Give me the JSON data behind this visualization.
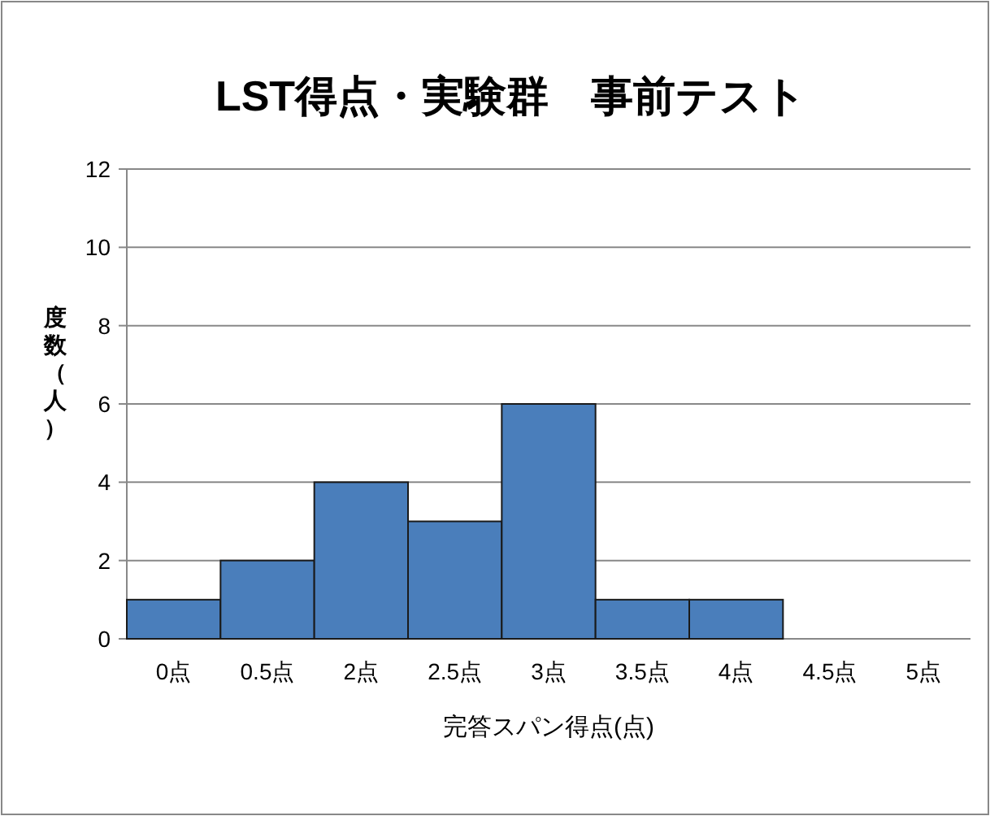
{
  "chart_data": {
    "type": "bar",
    "title": "LST得点・実験群　事前テスト",
    "xlabel": "完答スパン得点(点)",
    "ylabel": "度数（人）",
    "categories": [
      "0点",
      "0.5点",
      "2点",
      "2.5点",
      "3点",
      "3.5点",
      "4点",
      "4.5点",
      "5点"
    ],
    "values": [
      1,
      2,
      4,
      3,
      6,
      1,
      1,
      0,
      0
    ],
    "color": "#4a7ebb",
    "ylim": [
      0,
      12
    ],
    "yticks": [
      0,
      2,
      4,
      6,
      8,
      10,
      12
    ],
    "grid": "y"
  }
}
